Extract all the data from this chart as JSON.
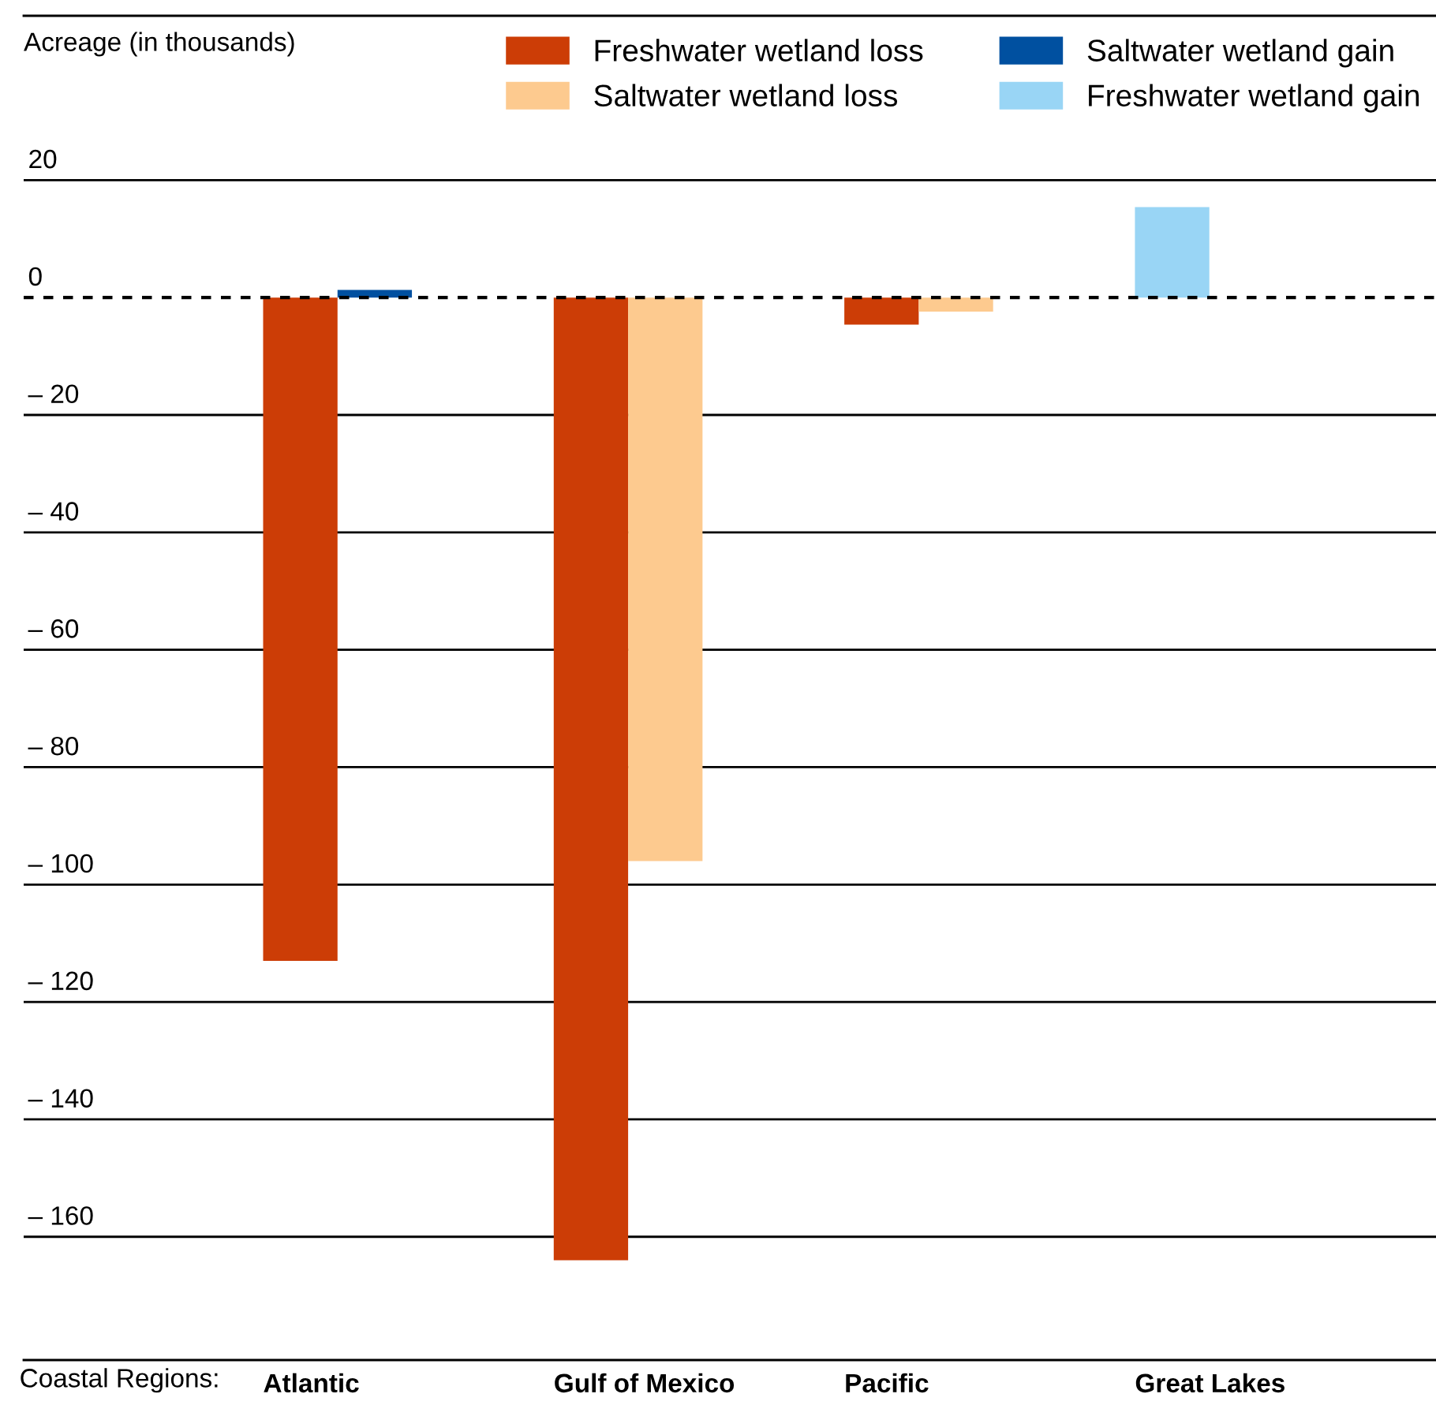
{
  "chart_data": {
    "type": "bar",
    "ylabel": "Acreage (in thousands)",
    "xlabel": "Coastal Regions:",
    "categories": [
      "Atlantic",
      "Gulf of Mexico",
      "Pacific",
      "Great Lakes"
    ],
    "series": [
      {
        "name": "Freshwater wetland loss",
        "color": "#cc3d06",
        "values": [
          -113,
          -164,
          -4.6,
          null
        ]
      },
      {
        "name": "Saltwater wetland loss",
        "color": "#fdca8f",
        "values": [
          null,
          -96,
          -2.4,
          null
        ]
      },
      {
        "name": "Freshwater wetland gain",
        "color": "#99d5f5",
        "values": [
          null,
          null,
          null,
          15.4
        ]
      },
      {
        "name": "Saltwater wetland gain",
        "color": "#0050a0",
        "values": [
          1.3,
          null,
          null,
          null
        ]
      }
    ],
    "ylim": [
      -181,
      48
    ],
    "yticks": [
      20,
      0,
      {
        "value": -20,
        "label": "– 20"
      },
      {
        "value": -40,
        "label": "– 40"
      },
      {
        "value": -60,
        "label": "– 60"
      },
      {
        "value": -80,
        "label": "– 80"
      },
      {
        "value": -100,
        "label": "– 100"
      },
      {
        "value": -120,
        "label": "– 120"
      },
      {
        "value": -140,
        "label": "– 140"
      },
      {
        "value": -160,
        "label": "– 160"
      }
    ],
    "grid": "y",
    "legend": "top right",
    "ref_lines": [
      {
        "axis": "y",
        "value": 0,
        "line_style": "dashed",
        "color": "#000000"
      }
    ]
  }
}
